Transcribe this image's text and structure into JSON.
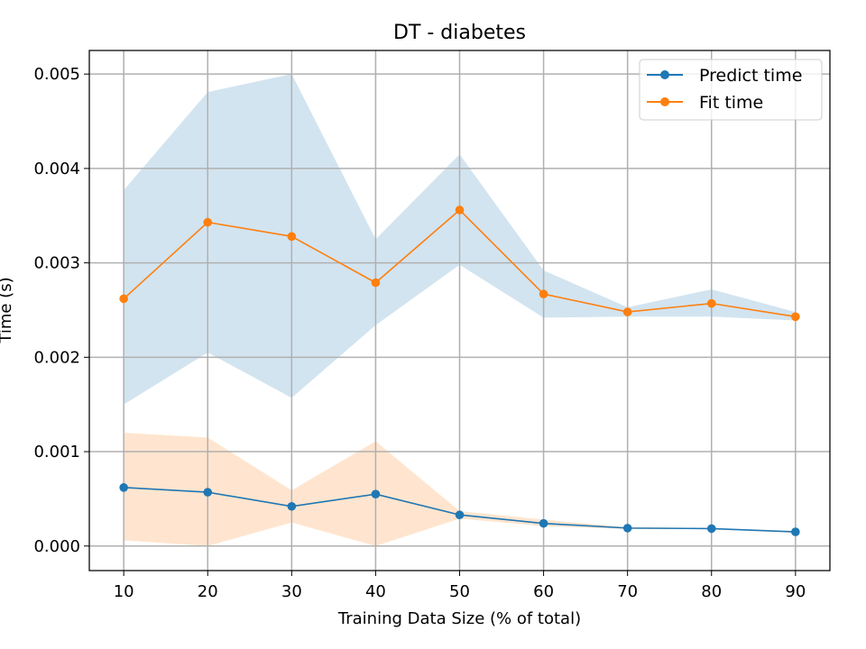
{
  "chart_data": {
    "type": "line",
    "title": "DT - diabetes",
    "xlabel": "Training Data Size (% of total)",
    "ylabel": "Time (s)",
    "x": [
      10,
      20,
      30,
      40,
      50,
      60,
      70,
      80,
      90
    ],
    "xlim": [
      5.9,
      94.1
    ],
    "ylim": [
      -0.00026,
      0.00525
    ],
    "xticks": [
      10,
      20,
      30,
      40,
      50,
      60,
      70,
      80,
      90
    ],
    "yticks": [
      0.0,
      0.001,
      0.002,
      0.003,
      0.004,
      0.005
    ],
    "ytick_labels": [
      "0.000",
      "0.001",
      "0.002",
      "0.003",
      "0.004",
      "0.005"
    ],
    "grid": true,
    "legend_position": "top-right",
    "series": [
      {
        "name": "Predict time",
        "color": "#1f77b4",
        "values": [
          0.00062,
          0.00057,
          0.00042,
          0.00055,
          0.00033,
          0.00024,
          0.00019,
          0.000185,
          0.00015
        ]
      },
      {
        "name": "Fit time",
        "color": "#ff7f0e",
        "values": [
          0.00262,
          0.00343,
          0.00328,
          0.00279,
          0.00356,
          0.00267,
          0.00248,
          0.00257,
          0.00243
        ]
      }
    ],
    "bands": [
      {
        "color": "#1f77b4",
        "opacity": 0.2,
        "lower": [
          0.0015,
          0.00205,
          0.00157,
          0.00234,
          0.00298,
          0.00242,
          0.00243,
          0.00243,
          0.00239
        ],
        "upper": [
          0.00377,
          0.00481,
          0.005,
          0.00325,
          0.00415,
          0.00292,
          0.00253,
          0.00272,
          0.00248
        ]
      },
      {
        "color": "#ff7f0e",
        "opacity": 0.2,
        "lower": [
          6e-05,
          0.0,
          0.00025,
          0.0,
          0.00029,
          0.00021,
          0.00018,
          0.00018,
          0.00014
        ],
        "upper": [
          0.0012,
          0.00115,
          0.00059,
          0.00111,
          0.00037,
          0.00028,
          0.0002,
          0.00019,
          0.00016
        ]
      }
    ]
  }
}
